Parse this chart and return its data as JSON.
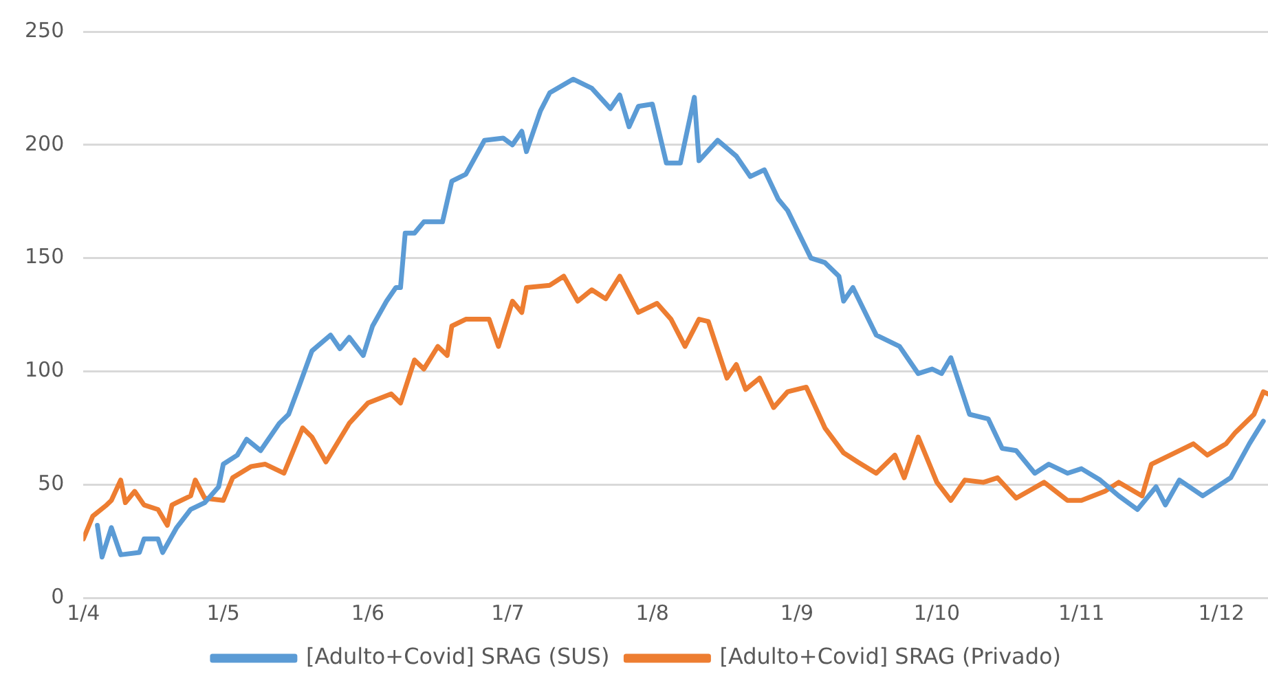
{
  "chart_data": {
    "type": "line",
    "xlim": [
      "--04-01",
      "--12-11"
    ],
    "xticks": [
      {
        "value": "--04-01",
        "label": "1/4"
      },
      {
        "value": "--05-01",
        "label": "1/5"
      },
      {
        "value": "--06-01",
        "label": "1/6"
      },
      {
        "value": "--07-01",
        "label": "1/7"
      },
      {
        "value": "--08-01",
        "label": "1/8"
      },
      {
        "value": "--09-01",
        "label": "1/9"
      },
      {
        "value": "--10-01",
        "label": "1/10"
      },
      {
        "value": "--11-01",
        "label": "1/11"
      },
      {
        "value": "--12-01",
        "label": "1/12"
      }
    ],
    "ylim": [
      0,
      250
    ],
    "yticks": [
      0,
      50,
      100,
      150,
      200,
      250
    ],
    "grid": "y",
    "legend": "bottom",
    "marker": "none",
    "line_style": "solid",
    "series": [
      {
        "name": "[Adulto+Covid] SRAG (SUS)",
        "color": "#5b9bd5",
        "x": [
          "--04-04",
          "--04-05",
          "--04-07",
          "--04-09",
          "--04-13",
          "--04-14",
          "--04-17",
          "--04-18",
          "--04-21",
          "--04-24",
          "--04-27",
          "--04-30",
          "--05-01",
          "--05-04",
          "--05-06",
          "--05-09",
          "--05-13",
          "--05-15",
          "--05-17",
          "--05-20",
          "--05-24",
          "--05-26",
          "--05-28",
          "--05-31",
          "--06-02",
          "--06-05",
          "--06-07",
          "--06-08",
          "--06-09",
          "--06-11",
          "--06-13",
          "--06-17",
          "--06-19",
          "--06-22",
          "--06-26",
          "--06-30",
          "--07-02",
          "--07-04",
          "--07-05",
          "--07-08",
          "--07-10",
          "--07-15",
          "--07-19",
          "--07-23",
          "--07-25",
          "--07-27",
          "--07-29",
          "--08-01",
          "--08-04",
          "--08-07",
          "--08-10",
          "--08-11",
          "--08-15",
          "--08-19",
          "--08-22",
          "--08-25",
          "--08-28",
          "--08-30",
          "--09-04",
          "--09-07",
          "--09-10",
          "--09-11",
          "--09-13",
          "--09-18",
          "--09-23",
          "--09-27",
          "--09-30",
          "--10-02",
          "--10-04",
          "--10-08",
          "--10-12",
          "--10-15",
          "--10-18",
          "--10-22",
          "--10-25",
          "--10-29",
          "--11-01",
          "--11-05",
          "--11-09",
          "--11-13",
          "--11-17",
          "--11-19",
          "--11-22",
          "--11-27",
          "--12-03",
          "--12-07",
          "--12-10"
        ],
        "values": [
          32,
          18,
          31,
          19,
          20,
          26,
          26,
          20,
          31,
          39,
          42,
          49,
          59,
          63,
          70,
          65,
          77,
          81,
          92,
          109,
          116,
          110,
          115,
          107,
          120,
          131,
          137,
          137,
          161,
          161,
          166,
          166,
          184,
          187,
          202,
          203,
          200,
          206,
          197,
          215,
          223,
          229,
          225,
          216,
          222,
          208,
          217,
          218,
          192,
          192,
          221,
          193,
          202,
          195,
          186,
          189,
          176,
          171,
          150,
          148,
          142,
          131,
          137,
          116,
          111,
          99,
          101,
          99,
          106,
          81,
          79,
          66,
          65,
          55,
          59,
          55,
          57,
          52,
          45,
          39,
          49,
          41,
          52,
          45,
          53,
          68,
          78
        ]
      },
      {
        "name": "[Adulto+Covid] SRAG (Privado)",
        "color": "#ed7d31",
        "x": [
          "--04-01",
          "--04-03",
          "--04-06",
          "--04-07",
          "--04-09",
          "--04-10",
          "--04-12",
          "--04-14",
          "--04-17",
          "--04-19",
          "--04-20",
          "--04-24",
          "--04-25",
          "--04-27",
          "--05-01",
          "--05-03",
          "--05-07",
          "--05-10",
          "--05-14",
          "--05-18",
          "--05-20",
          "--05-23",
          "--05-28",
          "--06-01",
          "--06-06",
          "--06-08",
          "--06-11",
          "--06-13",
          "--06-16",
          "--06-18",
          "--06-19",
          "--06-22",
          "--06-27",
          "--06-29",
          "--07-02",
          "--07-04",
          "--07-05",
          "--07-10",
          "--07-13",
          "--07-16",
          "--07-19",
          "--07-22",
          "--07-25",
          "--07-29",
          "--08-02",
          "--08-05",
          "--08-08",
          "--08-11",
          "--08-13",
          "--08-17",
          "--08-19",
          "--08-21",
          "--08-24",
          "--08-27",
          "--08-30",
          "--09-03",
          "--09-07",
          "--09-11",
          "--09-14",
          "--09-18",
          "--09-22",
          "--09-24",
          "--09-27",
          "--10-01",
          "--10-04",
          "--10-07",
          "--10-11",
          "--10-14",
          "--10-18",
          "--10-24",
          "--10-29",
          "--11-01",
          "--11-06",
          "--11-09",
          "--11-14",
          "--11-16",
          "--11-21",
          "--11-25",
          "--11-28",
          "--12-02",
          "--12-04",
          "--12-08",
          "--12-10",
          "--12-11"
        ],
        "values": [
          26,
          36,
          41,
          43,
          52,
          42,
          47,
          41,
          39,
          32,
          41,
          45,
          52,
          44,
          43,
          53,
          58,
          59,
          55,
          75,
          71,
          60,
          77,
          86,
          90,
          86,
          105,
          101,
          111,
          107,
          120,
          123,
          123,
          111,
          131,
          126,
          137,
          138,
          142,
          131,
          136,
          132,
          142,
          126,
          130,
          123,
          111,
          123,
          122,
          97,
          103,
          92,
          97,
          84,
          91,
          93,
          75,
          64,
          60,
          55,
          63,
          53,
          71,
          51,
          43,
          52,
          51,
          53,
          44,
          51,
          43,
          43,
          47,
          51,
          45,
          59,
          64,
          68,
          63,
          68,
          73,
          81,
          91,
          90
        ]
      }
    ]
  }
}
